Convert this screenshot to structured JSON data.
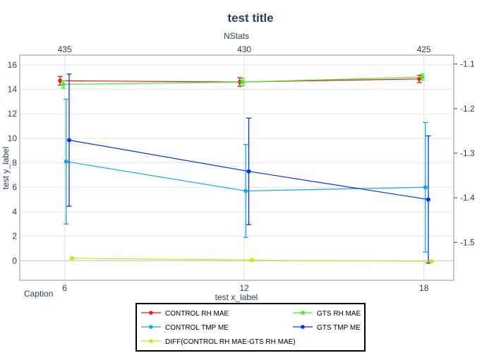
{
  "chart_data": {
    "type": "line",
    "title": "test title",
    "xlabel": "test x_label",
    "ylabel": "test y_label",
    "top_xlabel": "NStats",
    "caption": "Caption",
    "x": [
      6,
      12,
      18
    ],
    "x_ticks": [
      "6",
      "12",
      "18"
    ],
    "top_x_ticks": [
      "435",
      "430",
      "425"
    ],
    "xlim": [
      4.5,
      19
    ],
    "ylim_left": [
      -1.6,
      16.8
    ],
    "y_ticks_left": [
      "0",
      "2",
      "4",
      "6",
      "8",
      "10",
      "12",
      "14",
      "16"
    ],
    "ylim_right": [
      -1.585,
      -1.08
    ],
    "y_ticks_right": [
      "-1.1",
      "-1.2",
      "-1.3",
      "-1.4",
      "-1.5"
    ],
    "grid": true,
    "legend_position": "bottom",
    "series": [
      {
        "name": "CONTROL RH MAE",
        "color": "#e8171a",
        "axis": "left",
        "x": [
          5.85,
          11.85,
          17.85
        ],
        "values": [
          14.7,
          14.6,
          14.85
        ],
        "error": [
          0.35,
          0.35,
          0.3
        ]
      },
      {
        "name": "GTS RH MAE",
        "color": "#44ee22",
        "axis": "left",
        "x": [
          5.95,
          11.95,
          17.95
        ],
        "values": [
          14.4,
          14.6,
          15.0
        ],
        "error": [
          0.3,
          0.3,
          0.25
        ]
      },
      {
        "name": "CONTROL TMP ME",
        "color": "#11aaee",
        "axis": "left",
        "x": [
          6.05,
          12.05,
          18.05
        ],
        "values": [
          8.1,
          5.7,
          6.0
        ],
        "error": [
          5.1,
          3.8,
          5.3
        ]
      },
      {
        "name": "GTS TMP ME",
        "color": "#0033ee",
        "axis": "left",
        "x": [
          6.15,
          12.15,
          18.15
        ],
        "values": [
          9.85,
          7.3,
          5.0
        ],
        "error": [
          5.4,
          4.35,
          5.2
        ]
      },
      {
        "name": "DIFF(CONTROL RH MAE-GTS RH MAE)",
        "color": "#bbee11",
        "axis": "left",
        "x": [
          6.25,
          12.25,
          18.25
        ],
        "values": [
          0.2,
          0.05,
          -0.05
        ],
        "error": [
          0.1,
          0.08,
          0.08
        ]
      }
    ]
  }
}
